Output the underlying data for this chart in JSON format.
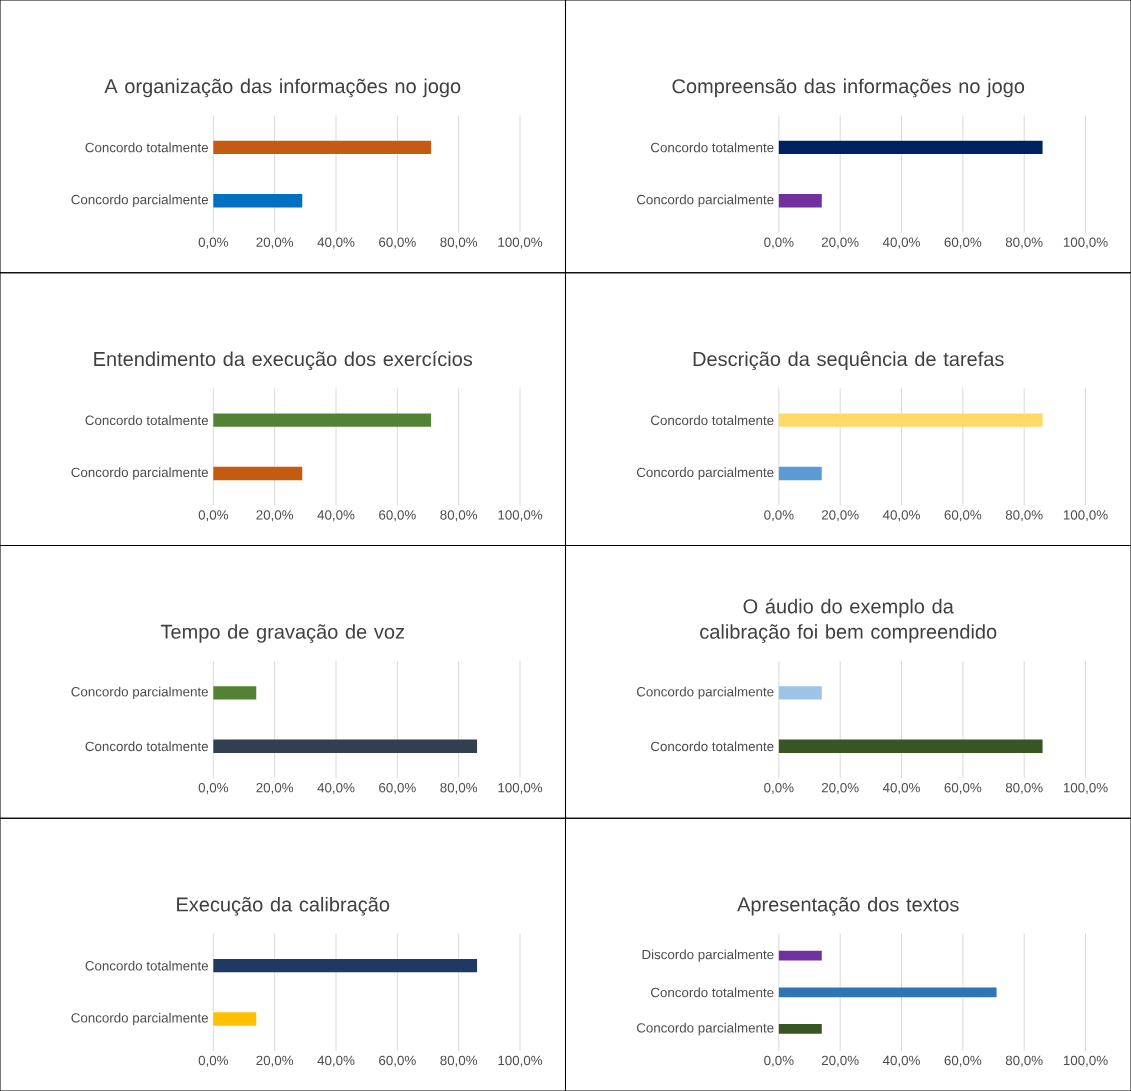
{
  "chart_data": [
    {
      "type": "bar",
      "orientation": "horizontal",
      "title": "A organização das informações no jogo",
      "categories": [
        "Concordo totalmente",
        "Concordo parcialmente"
      ],
      "values": [
        71,
        29
      ],
      "colors": [
        "#c55a11",
        "#0070c0"
      ],
      "xlim": [
        0,
        100
      ],
      "xticks": [
        {
          "value": 0,
          "label": "0,0%"
        },
        {
          "value": 20,
          "label": "20,0%"
        },
        {
          "value": 40,
          "label": "40,0%"
        },
        {
          "value": 60,
          "label": "60,0%"
        },
        {
          "value": 80,
          "label": "80,0%"
        },
        {
          "value": 100,
          "label": "100,0%"
        }
      ],
      "grid": "x"
    },
    {
      "type": "bar",
      "orientation": "horizontal",
      "title": "Compreensão das informações no jogo",
      "categories": [
        "Concordo totalmente",
        "Concordo parcialmente"
      ],
      "values": [
        86,
        14
      ],
      "colors": [
        "#002060",
        "#7030a0"
      ],
      "xlim": [
        0,
        100
      ],
      "xticks": [
        {
          "value": 0,
          "label": "0,0%"
        },
        {
          "value": 20,
          "label": "20,0%"
        },
        {
          "value": 40,
          "label": "40,0%"
        },
        {
          "value": 60,
          "label": "60,0%"
        },
        {
          "value": 80,
          "label": "80,0%"
        },
        {
          "value": 100,
          "label": "100,0%"
        }
      ],
      "grid": "x"
    },
    {
      "type": "bar",
      "orientation": "horizontal",
      "title": "Entendimento da execução dos exercícios",
      "categories": [
        "Concordo totalmente",
        "Concordo parcialmente"
      ],
      "values": [
        71,
        29
      ],
      "colors": [
        "#548235",
        "#c55a11"
      ],
      "xlim": [
        0,
        100
      ],
      "xticks": [
        {
          "value": 0,
          "label": "0,0%"
        },
        {
          "value": 20,
          "label": "20,0%"
        },
        {
          "value": 40,
          "label": "40,0%"
        },
        {
          "value": 60,
          "label": "60,0%"
        },
        {
          "value": 80,
          "label": "80,0%"
        },
        {
          "value": 100,
          "label": "100,0%"
        }
      ],
      "grid": "x"
    },
    {
      "type": "bar",
      "orientation": "horizontal",
      "title": "Descrição da sequência de tarefas",
      "categories": [
        "Concordo totalmente",
        "Concordo parcialmente"
      ],
      "values": [
        86,
        14
      ],
      "colors": [
        "#ffd966",
        "#5b9bd5"
      ],
      "xlim": [
        0,
        100
      ],
      "xticks": [
        {
          "value": 0,
          "label": "0,0%"
        },
        {
          "value": 20,
          "label": "20,0%"
        },
        {
          "value": 40,
          "label": "40,0%"
        },
        {
          "value": 60,
          "label": "60,0%"
        },
        {
          "value": 80,
          "label": "80,0%"
        },
        {
          "value": 100,
          "label": "100,0%"
        }
      ],
      "grid": "x"
    },
    {
      "type": "bar",
      "orientation": "horizontal",
      "title": "Tempo de gravação de voz",
      "categories": [
        "Concordo parcialmente",
        "Concordo totalmente"
      ],
      "values": [
        14,
        86
      ],
      "colors": [
        "#548235",
        "#323f4f"
      ],
      "xlim": [
        0,
        100
      ],
      "xticks": [
        {
          "value": 0,
          "label": "0,0%"
        },
        {
          "value": 20,
          "label": "20,0%"
        },
        {
          "value": 40,
          "label": "40,0%"
        },
        {
          "value": 60,
          "label": "60,0%"
        },
        {
          "value": 80,
          "label": "80,0%"
        },
        {
          "value": 100,
          "label": "100,0%"
        }
      ],
      "grid": "x"
    },
    {
      "type": "bar",
      "orientation": "horizontal",
      "title": "O áudio do exemplo da calibração foi bem compreendido",
      "categories": [
        "Concordo parcialmente",
        "Concordo totalmente"
      ],
      "values": [
        14,
        86
      ],
      "colors": [
        "#9dc3e6",
        "#375623"
      ],
      "xlim": [
        0,
        100
      ],
      "xticks": [
        {
          "value": 0,
          "label": "0,0%"
        },
        {
          "value": 20,
          "label": "20,0%"
        },
        {
          "value": 40,
          "label": "40,0%"
        },
        {
          "value": 60,
          "label": "60,0%"
        },
        {
          "value": 80,
          "label": "80,0%"
        },
        {
          "value": 100,
          "label": "100,0%"
        }
      ],
      "grid": "x"
    },
    {
      "type": "bar",
      "orientation": "horizontal",
      "title": "Execução da calibração",
      "categories": [
        "Concordo totalmente",
        "Concordo parcialmente"
      ],
      "values": [
        86,
        14
      ],
      "colors": [
        "#1f3864",
        "#ffc000"
      ],
      "xlim": [
        0,
        100
      ],
      "xticks": [
        {
          "value": 0,
          "label": "0,0%"
        },
        {
          "value": 20,
          "label": "20,0%"
        },
        {
          "value": 40,
          "label": "40,0%"
        },
        {
          "value": 60,
          "label": "60,0%"
        },
        {
          "value": 80,
          "label": "80,0%"
        },
        {
          "value": 100,
          "label": "100,0%"
        }
      ],
      "grid": "x"
    },
    {
      "type": "bar",
      "orientation": "horizontal",
      "title": "Apresentação dos textos",
      "categories": [
        "Discordo parcialmente",
        "Concordo totalmente",
        "Concordo parcialmente"
      ],
      "values": [
        14,
        71,
        14
      ],
      "colors": [
        "#7030a0",
        "#2e75b6",
        "#375623"
      ],
      "xlim": [
        0,
        100
      ],
      "xticks": [
        {
          "value": 0,
          "label": "0,0%"
        },
        {
          "value": 20,
          "label": "20,0%"
        },
        {
          "value": 40,
          "label": "40,0%"
        },
        {
          "value": 60,
          "label": "60,0%"
        },
        {
          "value": 80,
          "label": "80,0%"
        },
        {
          "value": 100,
          "label": "100,0%"
        }
      ],
      "grid": "x"
    }
  ]
}
